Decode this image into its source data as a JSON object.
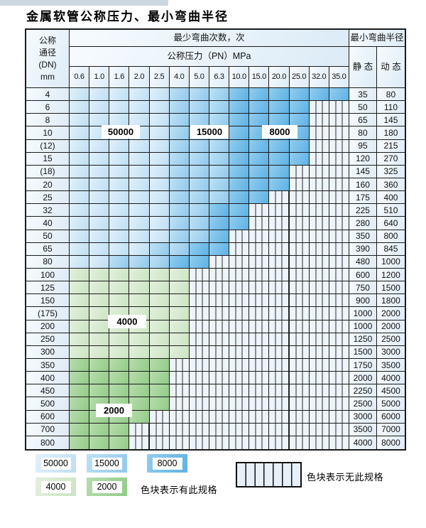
{
  "title": "金属软管公称压力、最小弯曲半径",
  "header": {
    "dn_lines": [
      "公称",
      "通径",
      "(DN)",
      "mm"
    ],
    "bend_cycles": "最少弯曲次数，次",
    "pressure": "公称压力（PN）MPa",
    "radius": "最小弯曲半径",
    "static": "静 态",
    "dynamic": "动 态",
    "pressures": [
      "0.6",
      "1.0",
      "1.6",
      "2.0",
      "2.5",
      "4.0",
      "5.0",
      "6.3",
      "10.0",
      "15.0",
      "20.0",
      "25.0",
      "32.0",
      "35.0"
    ]
  },
  "colors": {
    "L": {
      "from": "#e2f0fa",
      "to": "#bedff4"
    },
    "M": {
      "from": "#bfe1f4",
      "to": "#90c9ec"
    },
    "D": {
      "from": "#93cdee",
      "to": "#5cb2e5"
    },
    "G": {
      "from": "#e3f0dd",
      "to": "#cbe5c2"
    },
    "E": {
      "from": "#b8dcae",
      "to": "#92cc87"
    },
    "hatch_bg": "#edf4fa",
    "grid_line": "#1b1b1b"
  },
  "zone_meaning": {
    "L": "50000",
    "M": "15000",
    "D": "8000",
    "G": "4000",
    "E": "2000",
    "H": "无此规格"
  },
  "rows": [
    {
      "dn": "4",
      "static": "35",
      "dynamic": "80",
      "cells": "LLLLLMMMDDDDDD"
    },
    {
      "dn": "6",
      "static": "50",
      "dynamic": "110",
      "cells": "LLLLLMMMDDDDHH"
    },
    {
      "dn": "8",
      "static": "65",
      "dynamic": "145",
      "cells": "LLLLLMMMDDDDHH"
    },
    {
      "dn": "10",
      "static": "80",
      "dynamic": "180",
      "cells": "LLLLLMMMDDDDHH"
    },
    {
      "dn": "(12)",
      "static": "95",
      "dynamic": "215",
      "cells": "LLLLLMMMDDDDHH"
    },
    {
      "dn": "15",
      "static": "120",
      "dynamic": "270",
      "cells": "LLLLLMMMDDDDHH"
    },
    {
      "dn": "(18)",
      "static": "145",
      "dynamic": "325",
      "cells": "LLLLLMMMDDDHHH"
    },
    {
      "dn": "20",
      "static": "160",
      "dynamic": "360",
      "cells": "LLLLLMMMDDDHHH"
    },
    {
      "dn": "25",
      "static": "175",
      "dynamic": "400",
      "cells": "LLLLLMMMDDHHHH"
    },
    {
      "dn": "32",
      "static": "225",
      "dynamic": "510",
      "cells": "LLLLLMMDDHHHHH"
    },
    {
      "dn": "40",
      "static": "280",
      "dynamic": "640",
      "cells": "LLLLLMMDDHHHHH"
    },
    {
      "dn": "50",
      "static": "350",
      "dynamic": "800",
      "cells": "LLLLLMMDHHHHHH"
    },
    {
      "dn": "65",
      "static": "390",
      "dynamic": "845",
      "cells": "LLLLMMDDHHHHHH"
    },
    {
      "dn": "80",
      "static": "480",
      "dynamic": "1000",
      "cells": "LLMMMDDHHHHHHH"
    },
    {
      "dn": "100",
      "static": "600",
      "dynamic": "1200",
      "cells": "GGGGGGHHHHHHHH"
    },
    {
      "dn": "125",
      "static": "750",
      "dynamic": "1500",
      "cells": "GGGGGGHHHHHHHH"
    },
    {
      "dn": "150",
      "static": "900",
      "dynamic": "1800",
      "cells": "GGGGGGHHHHHHHH"
    },
    {
      "dn": "(175)",
      "static": "1000",
      "dynamic": "2000",
      "cells": "GGGGGGHHHHHHHH"
    },
    {
      "dn": "200",
      "static": "1000",
      "dynamic": "2000",
      "cells": "GGGGGGHHHHHHHH"
    },
    {
      "dn": "250",
      "static": "1250",
      "dynamic": "2500",
      "cells": "GGGGGGHHHHHHHH"
    },
    {
      "dn": "300",
      "static": "1500",
      "dynamic": "3000",
      "cells": "GGGGGGHHHHHHHH"
    },
    {
      "dn": "350",
      "static": "1750",
      "dynamic": "3500",
      "cells": "EEEEEHHHHHHHHH"
    },
    {
      "dn": "400",
      "static": "2000",
      "dynamic": "4000",
      "cells": "EEEEEHHHHHHHHH"
    },
    {
      "dn": "450",
      "static": "2250",
      "dynamic": "4500",
      "cells": "EEEEEHHHHHHHHH"
    },
    {
      "dn": "500",
      "static": "2500",
      "dynamic": "5000",
      "cells": "EEEEEHHHHHHHHH"
    },
    {
      "dn": "600",
      "static": "3000",
      "dynamic": "6000",
      "cells": "EEEEHHHHHHHHHH"
    },
    {
      "dn": "700",
      "static": "3500",
      "dynamic": "7000",
      "cells": "EEEHHHHHHHHHHH"
    },
    {
      "dn": "800",
      "static": "4000",
      "dynamic": "8000",
      "cells": "EEEHHHHHHHHHHH"
    }
  ],
  "overlay_labels": [
    "50000",
    "15000",
    "8000",
    "4000",
    "2000"
  ],
  "legend": {
    "items": [
      {
        "label": "50000",
        "zone": "L"
      },
      {
        "label": "15000",
        "zone": "M"
      },
      {
        "label": "8000",
        "zone": "D"
      },
      {
        "label": "4000",
        "zone": "G"
      },
      {
        "label": "2000",
        "zone": "E"
      }
    ],
    "has_spec_note": "色块表示有此规格",
    "no_spec_note": "色块表示无此规格"
  }
}
